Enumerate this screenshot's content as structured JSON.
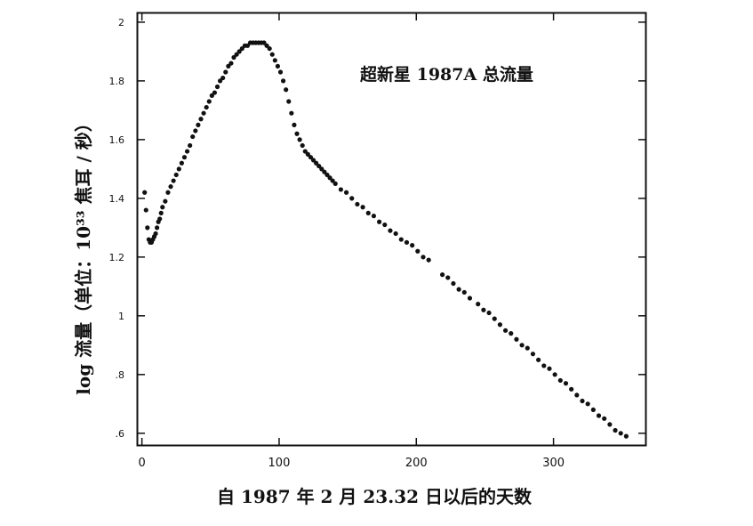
{
  "chart_data": {
    "type": "scatter",
    "title": "超新星 1987A 总流量",
    "xlabel": "自 1987 年 2 月 23.32 日以后的天数",
    "ylabel": "log 流量（单位：10³³ 焦耳 / 秒）",
    "xlim": [
      -3,
      367
    ],
    "ylim": [
      0.56,
      2.03
    ],
    "x_ticks": [
      0,
      100,
      200,
      300
    ],
    "x_tick_labels": [
      "0",
      "100",
      "200",
      "300"
    ],
    "y_ticks": [
      0.6,
      0.8,
      1.0,
      1.2,
      1.4,
      1.6,
      1.8,
      2.0
    ],
    "y_tick_labels": [
      ".6",
      ".8",
      "1",
      "1.2",
      "1.4",
      "1.6",
      "1.8",
      "2"
    ],
    "grid": false,
    "series": [
      {
        "x": [
          2,
          3,
          4,
          5,
          6,
          7,
          8,
          9,
          10,
          11,
          12,
          13,
          14,
          15,
          17,
          19,
          21,
          23,
          25,
          27,
          29,
          31,
          33,
          35,
          37,
          39,
          41,
          43,
          45,
          47,
          49,
          51,
          53,
          55,
          57,
          59,
          61,
          63,
          65,
          67,
          69,
          71,
          73,
          75,
          77,
          79,
          81,
          83,
          85,
          87,
          89,
          91,
          93,
          95,
          97,
          99,
          101,
          103,
          105,
          107,
          109,
          111,
          113,
          115,
          117,
          119,
          121,
          123,
          125,
          127,
          129,
          131,
          133,
          135,
          137,
          139,
          141,
          145,
          149,
          153,
          157,
          161,
          165,
          169,
          173,
          177,
          181,
          185,
          189,
          193,
          197,
          201,
          205,
          209,
          219,
          223,
          227,
          231,
          235,
          239,
          245,
          249,
          253,
          257,
          261,
          265,
          269,
          273,
          277,
          281,
          285,
          289,
          293,
          297,
          301,
          305,
          309,
          313,
          317,
          321,
          325,
          329,
          333,
          337,
          341,
          345,
          349,
          353
        ],
        "y": [
          1.42,
          1.36,
          1.3,
          1.26,
          1.25,
          1.25,
          1.26,
          1.27,
          1.28,
          1.3,
          1.32,
          1.33,
          1.35,
          1.37,
          1.39,
          1.42,
          1.44,
          1.46,
          1.48,
          1.5,
          1.52,
          1.54,
          1.56,
          1.58,
          1.61,
          1.63,
          1.65,
          1.67,
          1.69,
          1.71,
          1.73,
          1.75,
          1.76,
          1.78,
          1.8,
          1.81,
          1.83,
          1.85,
          1.86,
          1.88,
          1.89,
          1.9,
          1.91,
          1.92,
          1.92,
          1.93,
          1.93,
          1.93,
          1.93,
          1.93,
          1.93,
          1.92,
          1.91,
          1.89,
          1.87,
          1.85,
          1.83,
          1.8,
          1.77,
          1.73,
          1.69,
          1.65,
          1.62,
          1.6,
          1.58,
          1.56,
          1.55,
          1.54,
          1.53,
          1.52,
          1.51,
          1.5,
          1.49,
          1.48,
          1.47,
          1.46,
          1.45,
          1.43,
          1.42,
          1.4,
          1.38,
          1.37,
          1.35,
          1.34,
          1.32,
          1.31,
          1.29,
          1.28,
          1.26,
          1.25,
          1.24,
          1.22,
          1.2,
          1.19,
          1.14,
          1.13,
          1.11,
          1.09,
          1.08,
          1.06,
          1.04,
          1.02,
          1.01,
          0.99,
          0.97,
          0.95,
          0.94,
          0.92,
          0.9,
          0.89,
          0.87,
          0.85,
          0.83,
          0.82,
          0.8,
          0.78,
          0.77,
          0.75,
          0.73,
          0.71,
          0.7,
          0.68,
          0.66,
          0.65,
          0.63,
          0.61,
          0.6,
          0.59
        ]
      }
    ]
  }
}
